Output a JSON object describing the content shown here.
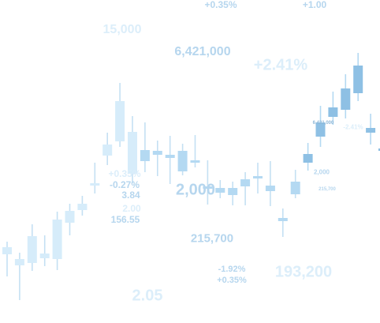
{
  "chart_data": {
    "type": "candlestick",
    "title": "",
    "xlabel": "",
    "ylabel": "",
    "grid": false,
    "legend": "none",
    "colors": {
      "rising_light": "#d6ecfa",
      "rising_mid": "#b4d9f2",
      "rising_dark": "#8ec0e4",
      "wick": "#c4e0f3",
      "label_light": "#dceefa",
      "label_mid": "#b6d6ee",
      "label_dark": "#8fb8d8"
    },
    "candles": [
      {
        "open": 58,
        "close": 67,
        "high": 74,
        "low": 30
      },
      {
        "open": 44,
        "close": 52,
        "high": 60,
        "low": 0
      },
      {
        "open": 47,
        "close": 81,
        "high": 96,
        "low": 37
      },
      {
        "open": 53,
        "close": 59,
        "high": 82,
        "low": 43
      },
      {
        "open": 52,
        "close": 102,
        "high": 112,
        "low": 38
      },
      {
        "open": 98,
        "close": 113,
        "high": 122,
        "low": 82
      },
      {
        "open": 114,
        "close": 122,
        "high": 132,
        "low": 107
      },
      {
        "open": 145,
        "close": 148,
        "high": 174,
        "low": 135
      },
      {
        "open": 183,
        "close": 197,
        "high": 212,
        "low": 171
      },
      {
        "open": 201,
        "close": 252,
        "high": 275,
        "low": 194
      },
      {
        "open": 160,
        "close": 213,
        "high": 233,
        "low": 148
      },
      {
        "open": 176,
        "close": 190,
        "high": 225,
        "low": 162
      },
      {
        "open": 184,
        "close": 189,
        "high": 202,
        "low": 157
      },
      {
        "open": 180,
        "close": 184,
        "high": 208,
        "low": 147
      },
      {
        "open": 163,
        "close": 189,
        "high": 198,
        "low": 158
      },
      {
        "open": 174,
        "close": 177,
        "high": 209,
        "low": 168
      },
      {
        "open": 144,
        "close": 141,
        "high": 177,
        "low": 121
      },
      {
        "open": 136,
        "close": 142,
        "high": 152,
        "low": 129
      },
      {
        "open": 133,
        "close": 142,
        "high": 150,
        "low": 120
      },
      {
        "open": 153,
        "close": 144,
        "high": 162,
        "low": 120
      },
      {
        "open": 157,
        "close": 155,
        "high": 174,
        "low": 135
      },
      {
        "open": 138,
        "close": 145,
        "high": 176,
        "low": 119
      },
      {
        "open": 104,
        "close": 100,
        "high": 116,
        "low": 80
      },
      {
        "open": 134,
        "close": 150,
        "high": 165,
        "low": 129
      },
      {
        "open": 174,
        "close": 185,
        "high": 199,
        "low": 164
      },
      {
        "open": 207,
        "close": 225,
        "high": 246,
        "low": 194
      },
      {
        "open": 232,
        "close": 244,
        "high": 264,
        "low": 222
      },
      {
        "open": 241,
        "close": 268,
        "high": 286,
        "low": 230
      },
      {
        "open": 262,
        "close": 297,
        "high": 313,
        "low": 252
      },
      {
        "open": 218,
        "close": 212,
        "high": 236,
        "low": 197
      },
      {
        "open": 192,
        "close": 190,
        "high": 198,
        "low": 182
      }
    ]
  },
  "labels": [
    {
      "text": "+0.35%",
      "size": 12,
      "tone": "label_mid"
    },
    {
      "text": "+1.00",
      "size": 12,
      "tone": "label_mid"
    },
    {
      "text": "15,000",
      "size": 16,
      "tone": "label_light"
    },
    {
      "text": "6,421,000",
      "size": 16,
      "tone": "label_mid"
    },
    {
      "text": "+2.41%",
      "size": 20,
      "tone": "label_light"
    },
    {
      "text": "6,421,000",
      "size": 6,
      "tone": "label_dark"
    },
    {
      "text": "-2.41%",
      "size": 8,
      "tone": "label_light"
    },
    {
      "text": "+0.35%",
      "size": 12,
      "tone": "label_light"
    },
    {
      "text": "-0.27%",
      "size": 12,
      "tone": "label_mid"
    },
    {
      "text": "3.84",
      "size": 12,
      "tone": "label_mid"
    },
    {
      "text": "2.00",
      "size": 12,
      "tone": "label_light"
    },
    {
      "text": "156.55",
      "size": 12,
      "tone": "label_mid"
    },
    {
      "text": "2,000",
      "size": 20,
      "tone": "label_mid"
    },
    {
      "text": "2,000",
      "size": 8,
      "tone": "label_mid"
    },
    {
      "text": "215,700",
      "size": 6,
      "tone": "label_mid"
    },
    {
      "text": "215,700",
      "size": 15,
      "tone": "label_mid"
    },
    {
      "text": "-1.92%",
      "size": 11,
      "tone": "label_mid"
    },
    {
      "text": "+0.35%",
      "size": 11,
      "tone": "label_mid"
    },
    {
      "text": "193,200",
      "size": 20,
      "tone": "label_light"
    },
    {
      "text": "2.05",
      "size": 20,
      "tone": "label_light"
    }
  ]
}
